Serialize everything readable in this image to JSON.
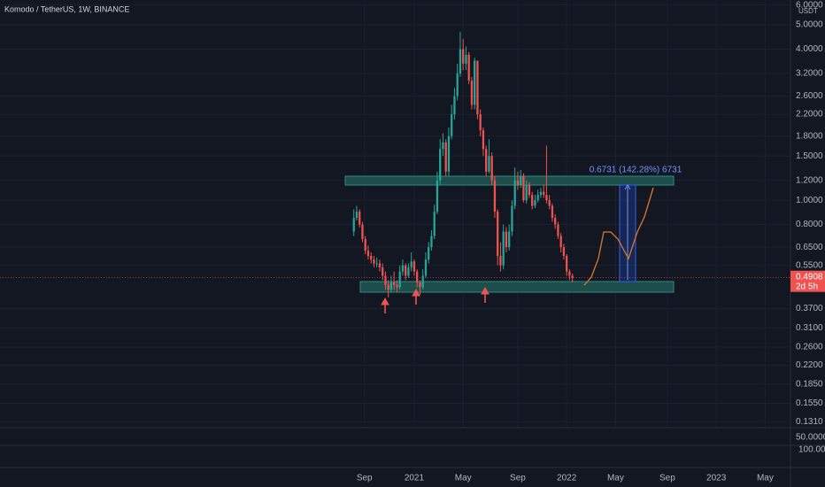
{
  "chart_data": {
    "type": "candlestick",
    "title": "Komodo / TetherUS, 1W, BINANCE",
    "unit": "USDT",
    "log_scale": true,
    "grid": true,
    "up_color": "#26a69a",
    "down_color": "#ef5350",
    "open": [
      0.75,
      0.85,
      0.9,
      0.8,
      0.7,
      0.63,
      0.6,
      0.58,
      0.56,
      0.56,
      0.54,
      0.5,
      0.46,
      0.44,
      0.47,
      0.46,
      0.45,
      0.52,
      0.55,
      0.5,
      0.54,
      0.57,
      0.52,
      0.47,
      0.45,
      0.5,
      0.58,
      0.65,
      0.72,
      0.9,
      1.2,
      1.6,
      1.7,
      1.3,
      1.8,
      2.2,
      2.6,
      3.2,
      4.0,
      3.5,
      3.8,
      3.0,
      2.4,
      3.6,
      2.2,
      1.9,
      1.6,
      1.3,
      1.5,
      1.2,
      0.9,
      0.6,
      0.55,
      0.75,
      0.65,
      0.75,
      0.95,
      1.2,
      1.15,
      1.25,
      1.0,
      1.15,
      1.05,
      0.95,
      1.0,
      1.05,
      1.08,
      1.05,
      1.0,
      0.95,
      0.85,
      0.8,
      0.72,
      0.65,
      0.6,
      0.52,
      0.5
    ],
    "high": [
      0.92,
      0.95,
      0.92,
      0.82,
      0.72,
      0.66,
      0.62,
      0.6,
      0.59,
      0.58,
      0.56,
      0.52,
      0.48,
      0.5,
      0.52,
      0.48,
      0.55,
      0.58,
      0.56,
      0.56,
      0.62,
      0.58,
      0.53,
      0.48,
      0.53,
      0.62,
      0.68,
      0.76,
      0.96,
      1.3,
      1.75,
      1.85,
      1.75,
      1.95,
      2.4,
      2.8,
      3.5,
      4.7,
      4.4,
      4.1,
      3.9,
      3.1,
      3.7,
      3.6,
      2.3,
      1.95,
      1.65,
      1.75,
      1.55,
      1.25,
      0.92,
      0.68,
      0.8,
      0.78,
      0.8,
      1.0,
      1.35,
      1.3,
      1.32,
      1.28,
      1.2,
      1.18,
      1.08,
      1.05,
      1.1,
      1.12,
      1.15,
      1.65,
      1.05,
      0.97,
      0.88,
      0.82,
      0.74,
      0.67,
      0.61,
      0.53,
      0.51
    ],
    "low": [
      0.72,
      0.83,
      0.78,
      0.68,
      0.61,
      0.58,
      0.56,
      0.54,
      0.54,
      0.52,
      0.48,
      0.44,
      0.41,
      0.43,
      0.44,
      0.43,
      0.44,
      0.5,
      0.48,
      0.49,
      0.52,
      0.5,
      0.45,
      0.42,
      0.44,
      0.49,
      0.56,
      0.63,
      0.7,
      0.88,
      1.15,
      1.5,
      1.25,
      1.25,
      1.75,
      2.1,
      2.5,
      3.1,
      3.3,
      3.3,
      2.9,
      2.3,
      2.3,
      2.1,
      1.8,
      1.5,
      1.25,
      1.28,
      1.15,
      0.85,
      0.55,
      0.52,
      0.53,
      0.62,
      0.63,
      0.72,
      0.92,
      1.1,
      1.12,
      0.98,
      0.97,
      1.02,
      0.92,
      0.93,
      0.98,
      1.02,
      1.02,
      0.97,
      0.92,
      0.82,
      0.77,
      0.7,
      0.62,
      0.58,
      0.5,
      0.48,
      0.47
    ],
    "close": [
      0.85,
      0.9,
      0.8,
      0.7,
      0.63,
      0.6,
      0.58,
      0.56,
      0.56,
      0.54,
      0.5,
      0.46,
      0.44,
      0.47,
      0.46,
      0.45,
      0.52,
      0.55,
      0.5,
      0.54,
      0.57,
      0.52,
      0.47,
      0.45,
      0.5,
      0.58,
      0.65,
      0.72,
      0.9,
      1.2,
      1.6,
      1.7,
      1.3,
      1.8,
      2.2,
      2.6,
      3.2,
      4.0,
      3.5,
      3.8,
      3.0,
      2.4,
      3.6,
      2.2,
      1.9,
      1.6,
      1.3,
      1.5,
      1.2,
      0.9,
      0.6,
      0.55,
      0.75,
      0.65,
      0.75,
      0.95,
      1.2,
      1.15,
      1.25,
      1.0,
      1.15,
      1.05,
      0.95,
      1.0,
      1.05,
      1.08,
      1.05,
      1.0,
      0.95,
      0.85,
      0.8,
      0.72,
      0.65,
      0.6,
      0.52,
      0.5,
      0.4908
    ],
    "ylim": [
      0.124,
      6.28
    ],
    "yticks": [
      {
        "value": 6,
        "label": "6.0000"
      },
      {
        "value": 5,
        "label": "5.0000"
      },
      {
        "value": 4,
        "label": "4.0000"
      },
      {
        "value": 3.2,
        "label": "3.2000"
      },
      {
        "value": 2.6,
        "label": "2.6000"
      },
      {
        "value": 2.2,
        "label": "2.2000"
      },
      {
        "value": 1.8,
        "label": "1.8000"
      },
      {
        "value": 1.5,
        "label": "1.5000"
      },
      {
        "value": 1.2,
        "label": "1.2000"
      },
      {
        "value": 1,
        "label": "1.0000"
      },
      {
        "value": 0.8,
        "label": "0.8000"
      },
      {
        "value": 0.65,
        "label": "0.6500"
      },
      {
        "value": 0.55,
        "label": "0.5500"
      },
      {
        "value": 0.37,
        "label": "0.3700"
      },
      {
        "value": 0.31,
        "label": "0.3100"
      },
      {
        "value": 0.26,
        "label": "0.2600"
      },
      {
        "value": 0.22,
        "label": "0.2200"
      },
      {
        "value": 0.185,
        "label": "0.1850"
      },
      {
        "value": 0.155,
        "label": "0.1550"
      },
      {
        "value": 0.131,
        "label": "0.1310"
      }
    ],
    "xlim": [
      -123,
      151.8
    ],
    "xticks": [
      {
        "value": 3.7,
        "label": "Sep"
      },
      {
        "value": 21,
        "label": "2021"
      },
      {
        "value": 38,
        "label": "May"
      },
      {
        "value": 57,
        "label": "Sep"
      },
      {
        "value": 74,
        "label": "2022"
      },
      {
        "value": 91,
        "label": "May"
      },
      {
        "value": 109,
        "label": "Sep"
      },
      {
        "value": 126,
        "label": "2023"
      },
      {
        "value": 143,
        "label": "May"
      }
    ],
    "current_price": {
      "value": 0.4908,
      "label": "0.4908",
      "countdown": "2d 5h"
    },
    "measure_label": "0.6731 (142.28%) 6731",
    "lower_pane_labels": [
      "50.0000",
      "100.00"
    ]
  }
}
